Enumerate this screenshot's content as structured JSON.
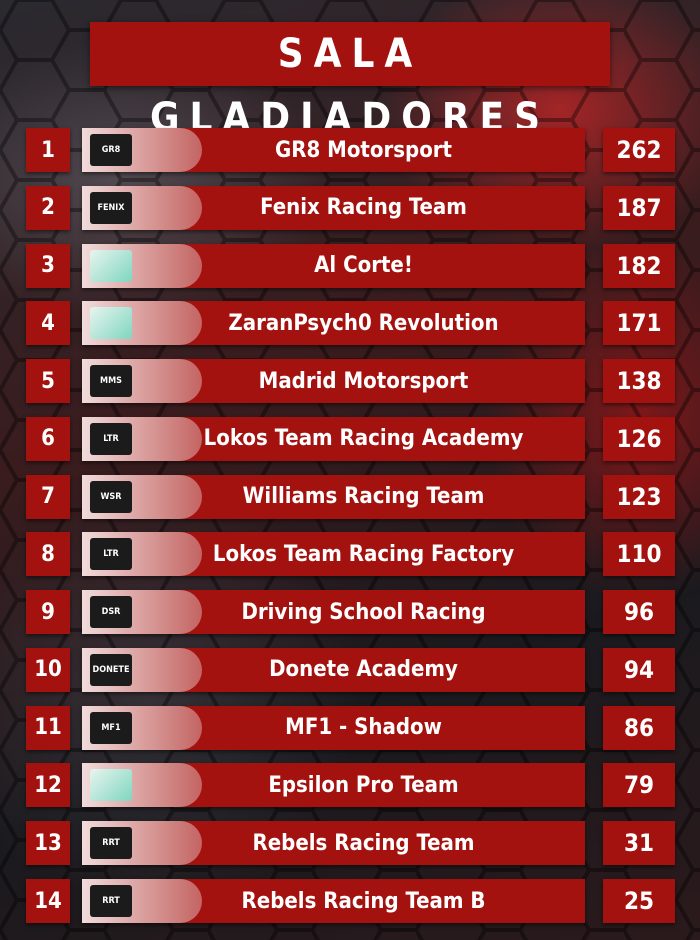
{
  "header": {
    "title": "SALA GLADIADORES"
  },
  "table": {
    "rows": [
      {
        "rank": 1,
        "logo": "GR8",
        "team": "GR8 Motorsport",
        "points": 262
      },
      {
        "rank": 2,
        "logo": "FENIX",
        "team": "Fenix Racing Team",
        "points": 187
      },
      {
        "rank": 3,
        "team": "Al Corte!",
        "points": 182
      },
      {
        "rank": 4,
        "team": "ZaranPsych0 Revolution",
        "points": 171
      },
      {
        "rank": 5,
        "logo": "MMS",
        "team": "Madrid Motorsport",
        "points": 138
      },
      {
        "rank": 6,
        "logo": "LTR",
        "team": "Lokos Team Racing Academy",
        "points": 126
      },
      {
        "rank": 7,
        "logo": "WSR",
        "team": "Williams Racing Team",
        "points": 123
      },
      {
        "rank": 8,
        "logo": "LTR",
        "team": "Lokos Team Racing Factory",
        "points": 110
      },
      {
        "rank": 9,
        "logo": "DSR",
        "team": "Driving School Racing",
        "points": 96
      },
      {
        "rank": 10,
        "logo": "DONETE",
        "team": "Donete Academy",
        "points": 94
      },
      {
        "rank": 11,
        "logo": "MF1",
        "team": "MF1 - Shadow",
        "points": 86
      },
      {
        "rank": 12,
        "team": "Epsilon Pro Team",
        "points": 79
      },
      {
        "rank": 13,
        "logo": "RRT",
        "team": "Rebels Racing Team",
        "points": 31
      },
      {
        "rank": 14,
        "logo": "RRT",
        "team": "Rebels Racing Team B",
        "points": 25
      }
    ]
  }
}
